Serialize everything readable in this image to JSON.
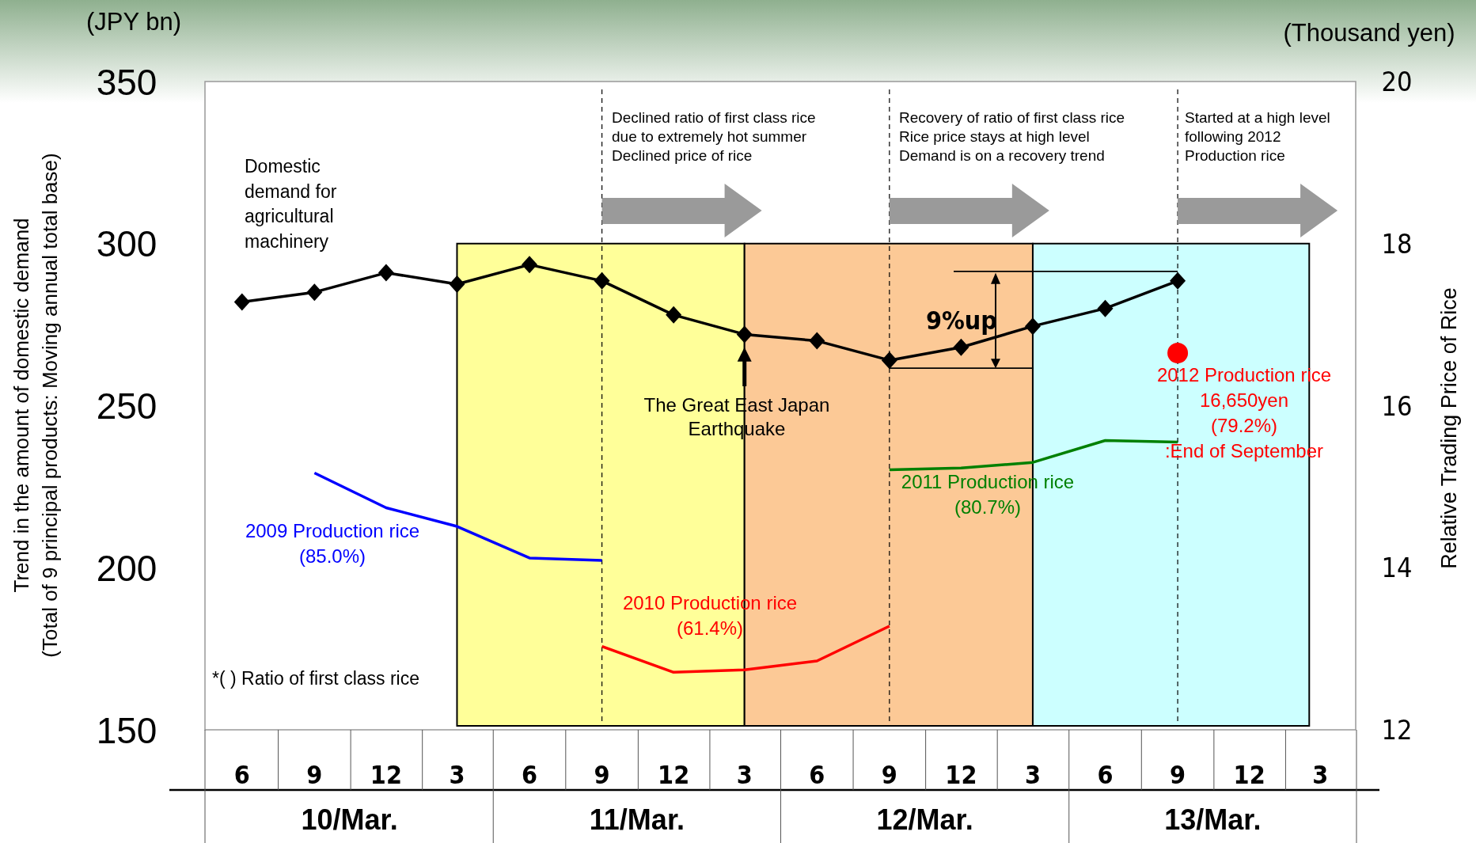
{
  "chart_data": {
    "type": "line",
    "ylabel": "Trend in the amount of domestic demand\n(Total of 9 principal products: Moving annual total base)",
    "y2label": "Relative Trading Price of Rice",
    "xlim": [
      "2009-04-15",
      "2013-04-15"
    ],
    "xticks": [
      {
        "value": "2009-06",
        "label": "6"
      },
      {
        "value": "2009-09",
        "label": "9"
      },
      {
        "value": "2009-12",
        "label": "12"
      },
      {
        "value": "2010-03",
        "label": "3"
      },
      {
        "value": "2010-06",
        "label": "6"
      },
      {
        "value": "2010-09",
        "label": "9"
      },
      {
        "value": "2010-12",
        "label": "12"
      },
      {
        "value": "2011-03",
        "label": "3"
      },
      {
        "value": "2011-06",
        "label": "6"
      },
      {
        "value": "2011-09",
        "label": "9"
      },
      {
        "value": "2011-12",
        "label": "12"
      },
      {
        "value": "2012-03",
        "label": "3"
      },
      {
        "value": "2012-06",
        "label": "6"
      },
      {
        "value": "2012-09",
        "label": "9"
      },
      {
        "value": "2012-12",
        "label": "12"
      },
      {
        "value": "2013-03",
        "label": "3"
      }
    ],
    "ylim": [
      150,
      350
    ],
    "yticks": [
      150,
      200,
      250,
      300,
      350
    ],
    "y2lim": [
      12,
      20
    ],
    "y2ticks": [
      12,
      14,
      16,
      18,
      20
    ],
    "series": [
      {
        "name": "Domestic\ndemand for\nagricultural\nmachinery",
        "color": "#000000",
        "marker": "diamond",
        "x": [
          "2009-06",
          "2009-09",
          "2009-12",
          "2010-03",
          "2010-06",
          "2010-09",
          "2010-12",
          "2011-03",
          "2011-06",
          "2011-09",
          "2011-12",
          "2012-03",
          "2012-06",
          "2012-09"
        ],
        "values": [
          282,
          285,
          291,
          287.5,
          293.5,
          288.5,
          278,
          272,
          270,
          264,
          268,
          274.5,
          280,
          288.5
        ]
      },
      {
        "name": "2009 Production rice\n(85.0%)",
        "axis": "y2",
        "color": "#0000ff",
        "marker": "none",
        "x": [
          "2009-09",
          "2009-12",
          "2010-03",
          "2010-06",
          "2010-09"
        ],
        "values": [
          15.17,
          14.74,
          14.51,
          14.12,
          14.09
        ]
      },
      {
        "name": "2010 Production rice\n(61.4%)",
        "axis": "y2",
        "color": "#ff0000",
        "marker": "none",
        "x": [
          "2010-09",
          "2010-12",
          "2011-03",
          "2011-06",
          "2011-09"
        ],
        "values": [
          13.03,
          12.71,
          12.74,
          12.85,
          13.28
        ]
      },
      {
        "name": "2011 Production rice\n(80.7%)",
        "axis": "y2",
        "color": "#008000",
        "marker": "none",
        "x": [
          "2011-09",
          "2011-12",
          "2012-03",
          "2012-06",
          "2012-09"
        ],
        "values": [
          15.21,
          15.23,
          15.3,
          15.57,
          15.55
        ]
      },
      {
        "name": "2012 Production rice",
        "type": "scatter",
        "axis": "y2",
        "color": "#ff0000",
        "marker": "circle",
        "x": [
          "2012-09"
        ],
        "values": [
          16.65
        ]
      }
    ],
    "ref_lines": [
      {
        "axis": "x",
        "value": "2010-09",
        "color": "#000000",
        "line_style": "dashed"
      },
      {
        "axis": "x",
        "value": "2011-09",
        "color": "#000000",
        "line_style": "dashed"
      },
      {
        "axis": "x",
        "value": "2012-09",
        "color": "#000000",
        "line_style": "dashed"
      }
    ],
    "bands": [
      {
        "axis": "x",
        "from": "2010-03",
        "to": "2011-03",
        "color": "#ffff99"
      },
      {
        "axis": "x",
        "from": "2011-03",
        "to": "2012-03",
        "color": "#fcc996"
      },
      {
        "axis": "x",
        "from": "2012-03",
        "to": "2013-02-15",
        "color": "#ccffff"
      }
    ],
    "annotations": [
      "(JPY bn)",
      "(Thousand yen)",
      "Declined ratio of first class rice\ndue to extremely hot summer\nDeclined price of rice",
      "Recovery of ratio of first class rice\nRice price stays at high level\nDemand is on a recovery trend",
      "Started at a high level\nfollowing 2012\nProduction rice",
      {
        "text": "The Great East Japan\nEarthquake",
        "x": "2011-03",
        "y": 268
      },
      {
        "text": "9%up",
        "x": "2012-03",
        "y": 276
      },
      "*( ) Ratio of first class rice",
      "16,650yen\n(79.2%)\n:End of September",
      "10/Mar.",
      "11/Mar.",
      "12/Mar.",
      "13/Mar."
    ]
  }
}
